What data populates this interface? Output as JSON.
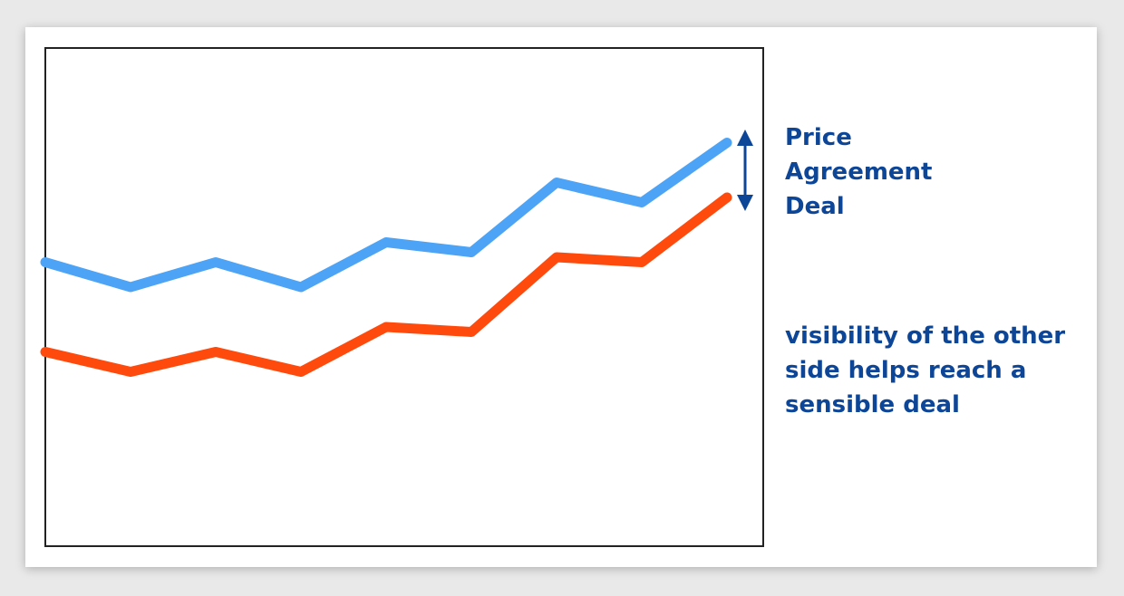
{
  "chart_data": {
    "type": "line",
    "title": "",
    "xlabel": "",
    "ylabel": "",
    "x": [
      0,
      1,
      2,
      3,
      4,
      5,
      6,
      7,
      8
    ],
    "xlim": [
      0,
      8
    ],
    "ylim": [
      0,
      100
    ],
    "grid": false,
    "series": [
      {
        "color": "#4da3f5",
        "values": [
          57,
          52,
          57,
          52,
          61,
          59,
          73,
          69,
          81
        ]
      },
      {
        "color": "#ff4a0d",
        "values": [
          39,
          35,
          39,
          35,
          44,
          43,
          58,
          57,
          70
        ]
      }
    ],
    "annotations": {
      "labels": [
        "Price",
        "Agreement",
        "Deal"
      ],
      "note_lines": [
        "visibility of the other",
        "side helps reach a",
        "sensible deal"
      ],
      "arrow_color": "#0d4597",
      "text_color": "#0d4597"
    }
  }
}
